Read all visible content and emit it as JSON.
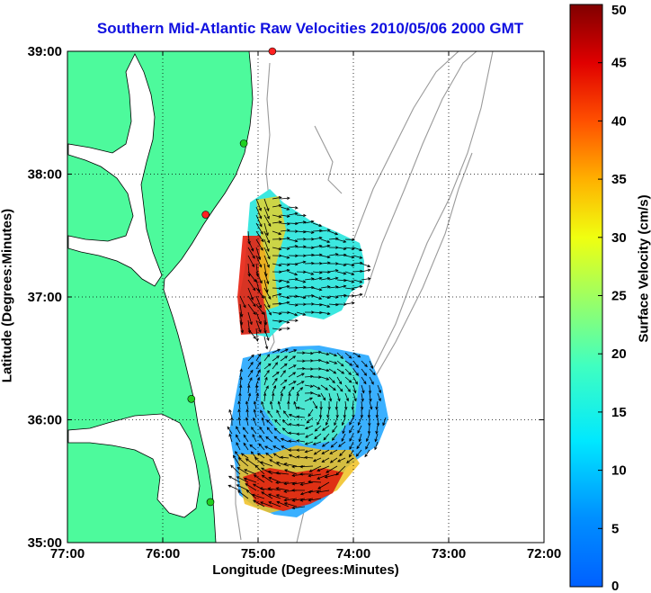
{
  "map": {
    "title": "Southern Mid-Atlantic Raw Velocities 2010/05/06 2000 GMT",
    "xlabel": "Longitude (Degrees:Minutes)",
    "ylabel": "Latitude (Degrees:Minutes)",
    "lon_range": [
      -77,
      -72
    ],
    "lat_range": [
      35,
      39
    ],
    "lon_ticks": [
      "77:00",
      "76:00",
      "75:00",
      "74:00",
      "73:00",
      "72:00"
    ],
    "lat_ticks": [
      "39:00",
      "38:00",
      "37:00",
      "36:00",
      "35:00"
    ],
    "grid": true,
    "colors": {
      "land": "#4dfa9c",
      "coastline": "#000000",
      "bathymetry": "#999999",
      "water": "#ffffff"
    }
  },
  "colorbar": {
    "label": "Surface Velocity (cm/s)",
    "range": [
      0,
      50
    ],
    "ticks": [
      "0",
      "5",
      "10",
      "15",
      "20",
      "25",
      "30",
      "35",
      "40",
      "45",
      "50"
    ],
    "colormap": "jet"
  },
  "stations": [
    {
      "status_color": "#ff2020",
      "lon": -74.85,
      "lat": 39.0
    },
    {
      "status_color": "#20d020",
      "lon": -75.15,
      "lat": 38.25
    },
    {
      "status_color": "#ff2020",
      "lon": -75.55,
      "lat": 37.67
    },
    {
      "status_color": "#20d020",
      "lon": -75.7,
      "lat": 36.17
    },
    {
      "status_color": "#20d020",
      "lon": -75.5,
      "lat": 35.33
    }
  ]
}
